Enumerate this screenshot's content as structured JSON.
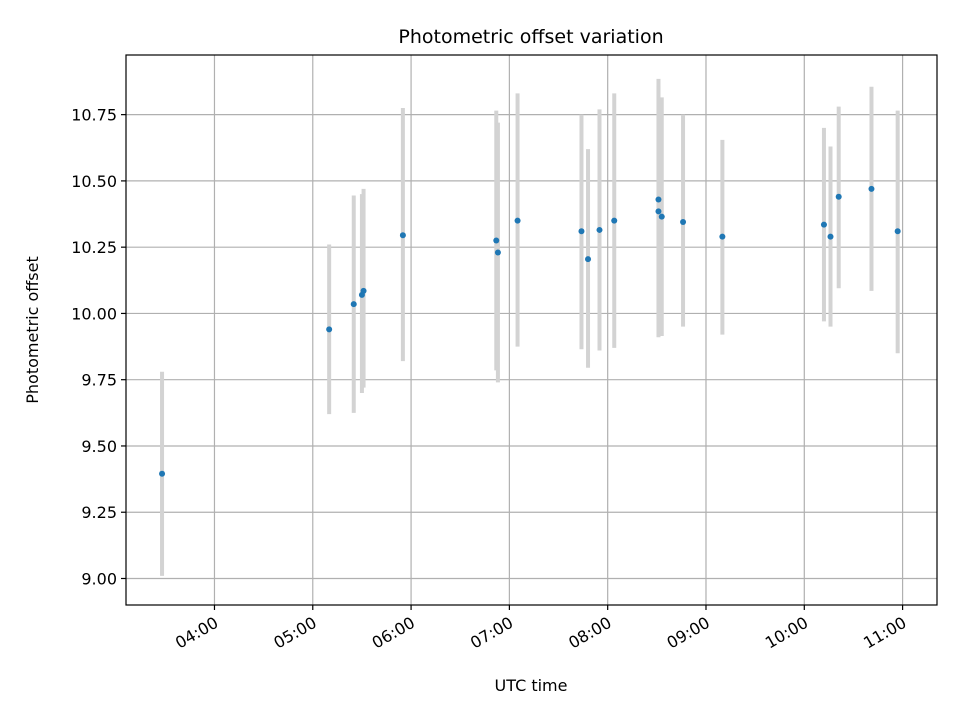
{
  "chart_data": {
    "type": "scatter",
    "title": "Photometric offset variation",
    "xlabel": "UTC time",
    "ylabel": "Photometric offset",
    "xlim": [
      "03:06",
      "11:21"
    ],
    "ylim": [
      8.9,
      10.975
    ],
    "x_ticks": [
      "04:00",
      "05:00",
      "06:00",
      "07:00",
      "08:00",
      "09:00",
      "10:00",
      "11:00"
    ],
    "y_ticks": [
      "9.00",
      "9.25",
      "9.50",
      "9.75",
      "10.00",
      "10.25",
      "10.50",
      "10.75"
    ],
    "grid": true,
    "marker_color": "#1f77b4",
    "errorbar_color": "#d3d3d3",
    "points": [
      {
        "x": "03:28",
        "y": 9.395,
        "err_low": 9.01,
        "err_high": 9.78
      },
      {
        "x": "05:10",
        "y": 9.94,
        "err_low": 9.62,
        "err_high": 10.26
      },
      {
        "x": "05:25",
        "y": 10.035,
        "err_low": 9.625,
        "err_high": 10.445
      },
      {
        "x": "05:30",
        "y": 10.07,
        "err_low": 9.7,
        "err_high": 10.45
      },
      {
        "x": "05:31",
        "y": 10.085,
        "err_low": 9.72,
        "err_high": 10.47
      },
      {
        "x": "05:55",
        "y": 10.295,
        "err_low": 9.82,
        "err_high": 10.775
      },
      {
        "x": "06:52",
        "y": 10.275,
        "err_low": 9.785,
        "err_high": 10.765
      },
      {
        "x": "06:53",
        "y": 10.23,
        "err_low": 9.74,
        "err_high": 10.72
      },
      {
        "x": "07:05",
        "y": 10.35,
        "err_low": 9.875,
        "err_high": 10.83
      },
      {
        "x": "07:44",
        "y": 10.31,
        "err_low": 9.865,
        "err_high": 10.75
      },
      {
        "x": "07:48",
        "y": 10.205,
        "err_low": 9.795,
        "err_high": 10.62
      },
      {
        "x": "07:55",
        "y": 10.315,
        "err_low": 9.86,
        "err_high": 10.77
      },
      {
        "x": "08:04",
        "y": 10.35,
        "err_low": 9.87,
        "err_high": 10.83
      },
      {
        "x": "08:31",
        "y": 10.385,
        "err_low": 9.91,
        "err_high": 10.86
      },
      {
        "x": "08:31",
        "y": 10.43,
        "err_low": 9.975,
        "err_high": 10.885
      },
      {
        "x": "08:33",
        "y": 10.365,
        "err_low": 9.915,
        "err_high": 10.815
      },
      {
        "x": "08:46",
        "y": 10.345,
        "err_low": 9.95,
        "err_high": 10.75
      },
      {
        "x": "09:10",
        "y": 10.29,
        "err_low": 9.92,
        "err_high": 10.655
      },
      {
        "x": "10:12",
        "y": 10.335,
        "err_low": 9.97,
        "err_high": 10.7
      },
      {
        "x": "10:16",
        "y": 10.29,
        "err_low": 9.95,
        "err_high": 10.63
      },
      {
        "x": "10:21",
        "y": 10.44,
        "err_low": 10.095,
        "err_high": 10.78
      },
      {
        "x": "10:41",
        "y": 10.47,
        "err_low": 10.085,
        "err_high": 10.855
      },
      {
        "x": "10:57",
        "y": 10.31,
        "err_low": 9.85,
        "err_high": 10.765
      }
    ]
  }
}
